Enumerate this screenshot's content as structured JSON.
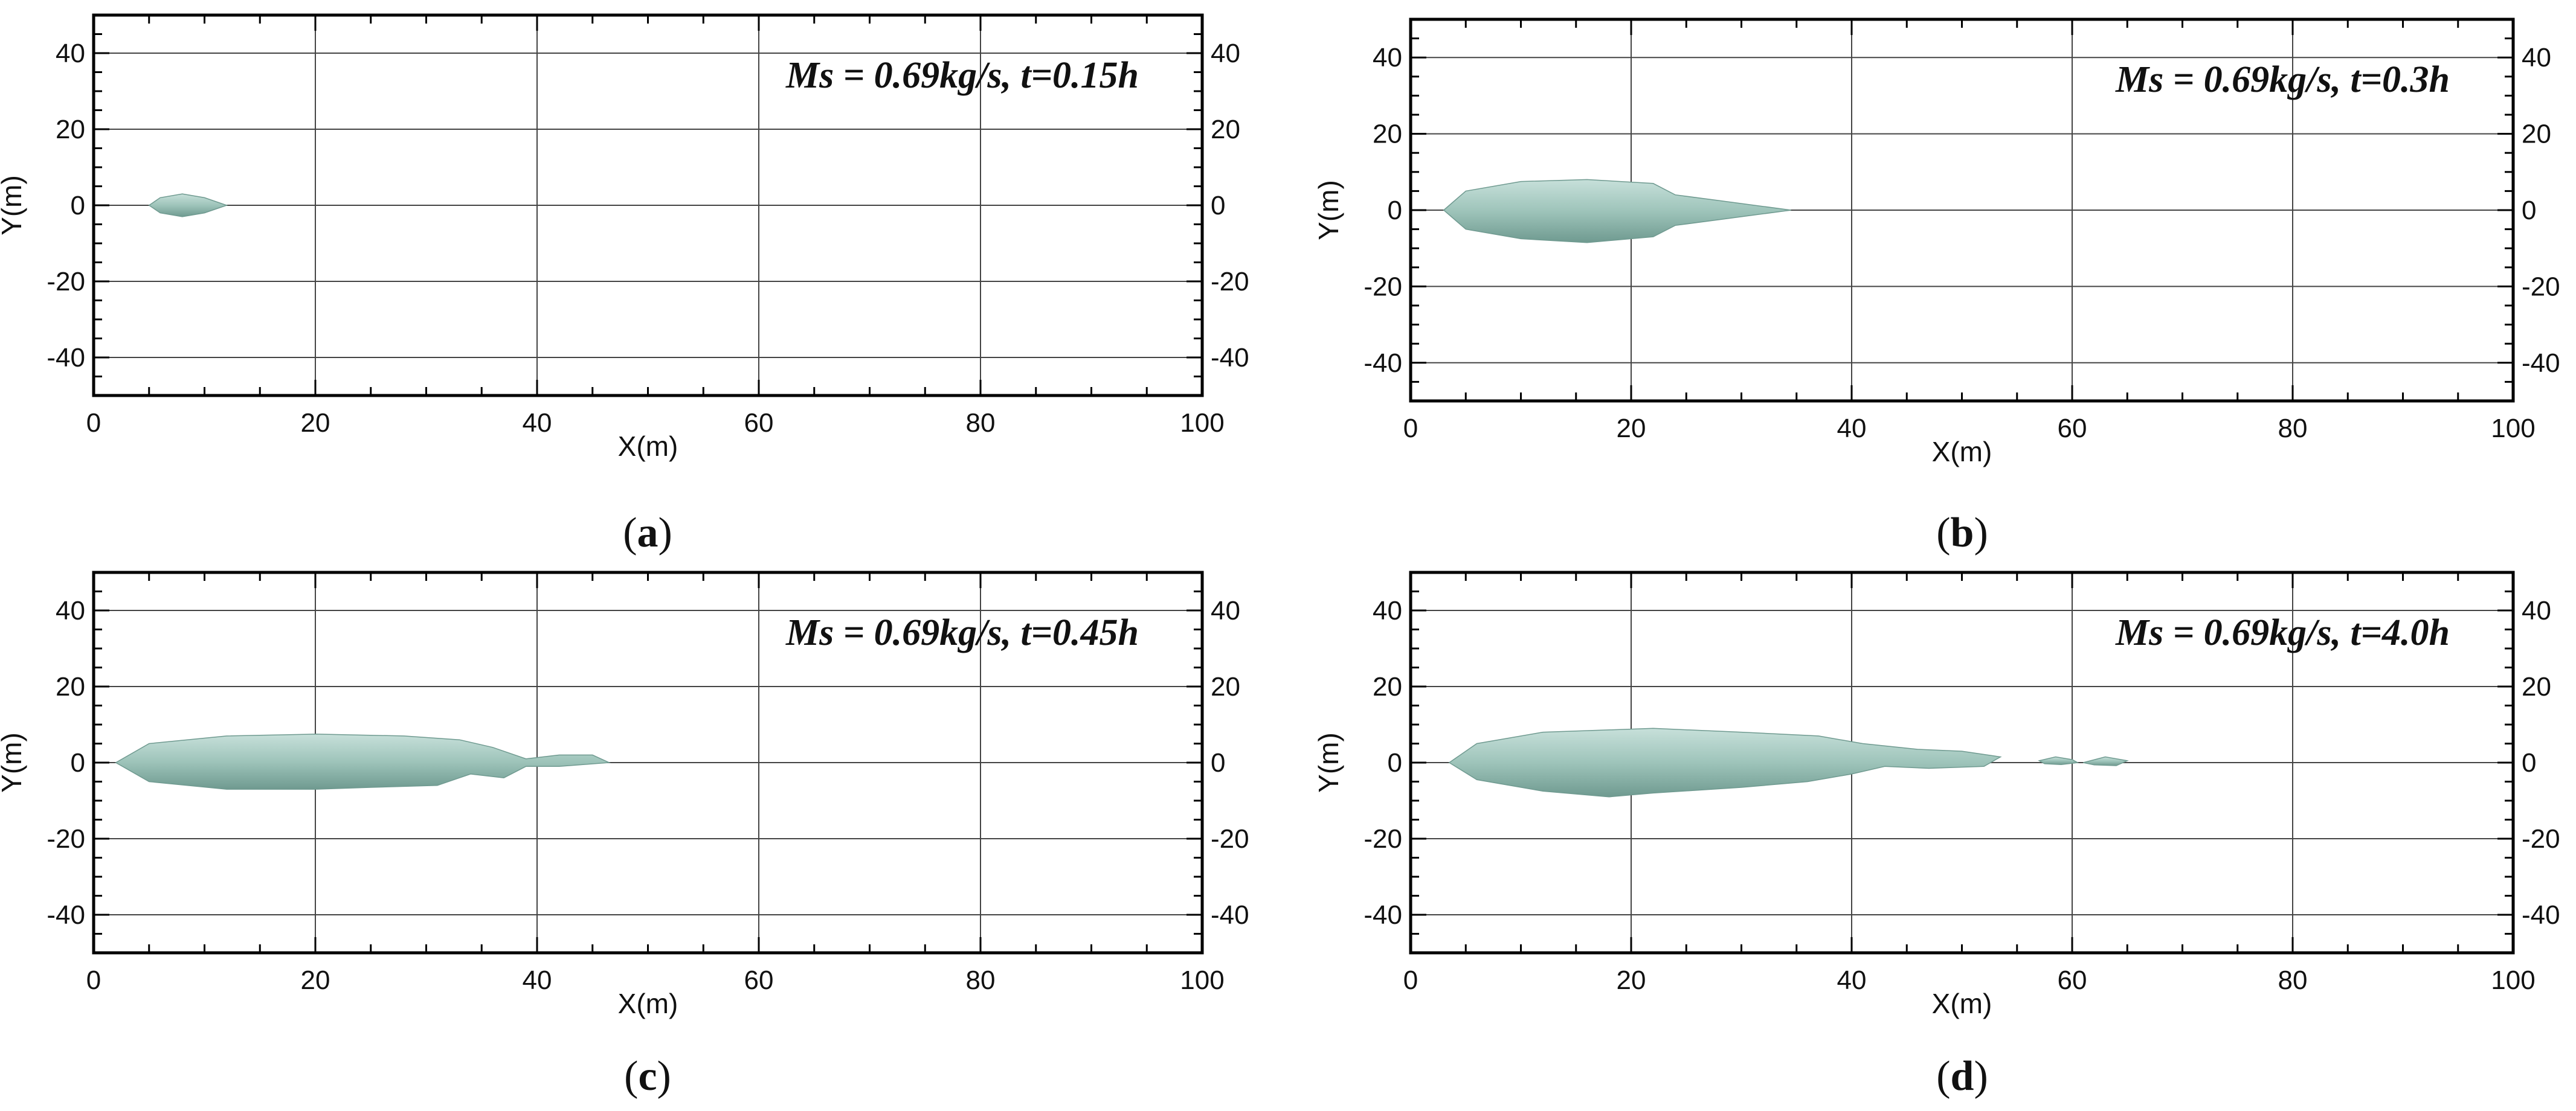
{
  "colors": {
    "plume_fill": "#9ec4ba",
    "plume_light": "#c7e0da",
    "plume_edge": "#6f9a90",
    "grid": "#444444",
    "frame": "#000000"
  },
  "chart_data": [
    {
      "type": "area",
      "panel": "a",
      "caption_letter": "a",
      "annotation": "Ms = 0.69kg/s, t=0.15h",
      "xlabel": "X(m)",
      "ylabel": "Y(m)",
      "xlim": [
        0,
        100
      ],
      "ylim": [
        -50,
        50
      ],
      "x_ticks": [
        0,
        20,
        40,
        60,
        80,
        100
      ],
      "y_ticks": [
        -40,
        -20,
        0,
        20,
        40
      ],
      "grid": true,
      "plume_outline": [
        [
          5,
          0
        ],
        [
          6,
          2
        ],
        [
          8,
          3
        ],
        [
          10,
          2
        ],
        [
          12,
          0
        ],
        [
          10,
          -2
        ],
        [
          8,
          -3
        ],
        [
          6,
          -2
        ]
      ]
    },
    {
      "type": "area",
      "panel": "b",
      "caption_letter": "b",
      "annotation": "Ms = 0.69kg/s, t=0.3h",
      "xlabel": "X(m)",
      "ylabel": "Y(m)",
      "xlim": [
        0,
        100
      ],
      "ylim": [
        -50,
        50
      ],
      "x_ticks": [
        0,
        20,
        40,
        60,
        80,
        100
      ],
      "y_ticks": [
        -40,
        -20,
        0,
        20,
        40
      ],
      "grid": true,
      "plume_outline": [
        [
          3,
          0
        ],
        [
          5,
          5
        ],
        [
          10,
          7.5
        ],
        [
          16,
          8
        ],
        [
          22,
          7
        ],
        [
          24,
          4
        ],
        [
          28,
          2.5
        ],
        [
          34.5,
          0
        ],
        [
          28,
          -2.5
        ],
        [
          24,
          -4
        ],
        [
          22,
          -7
        ],
        [
          16,
          -8.5
        ],
        [
          10,
          -7.5
        ],
        [
          5,
          -5
        ]
      ]
    },
    {
      "type": "area",
      "panel": "c",
      "caption_letter": "c",
      "annotation": "Ms = 0.69kg/s, t=0.45h",
      "xlabel": "X(m)",
      "ylabel": "Y(m)",
      "xlim": [
        0,
        100
      ],
      "ylim": [
        -50,
        50
      ],
      "x_ticks": [
        0,
        20,
        40,
        60,
        80,
        100
      ],
      "y_ticks": [
        -40,
        -20,
        0,
        20,
        40
      ],
      "grid": true,
      "plume_outline": [
        [
          2,
          0
        ],
        [
          5,
          5
        ],
        [
          12,
          7
        ],
        [
          20,
          7.5
        ],
        [
          28,
          7
        ],
        [
          33,
          6
        ],
        [
          36,
          4
        ],
        [
          39,
          1
        ],
        [
          42,
          2
        ],
        [
          45,
          2
        ],
        [
          46.5,
          0
        ],
        [
          42,
          -1
        ],
        [
          39,
          -1
        ],
        [
          37,
          -4
        ],
        [
          34,
          -3
        ],
        [
          31,
          -6
        ],
        [
          25,
          -6.5
        ],
        [
          20,
          -7
        ],
        [
          12,
          -7
        ],
        [
          5,
          -5
        ]
      ]
    },
    {
      "type": "area",
      "panel": "d",
      "caption_letter": "d",
      "annotation": "Ms = 0.69kg/s, t=4.0h",
      "xlabel": "X(m)",
      "ylabel": "Y(m)",
      "xlim": [
        0,
        100
      ],
      "ylim": [
        -50,
        50
      ],
      "x_ticks": [
        0,
        20,
        40,
        60,
        80,
        100
      ],
      "y_ticks": [
        -40,
        -20,
        0,
        20,
        40
      ],
      "grid": true,
      "plume_outline": [
        [
          3.5,
          0
        ],
        [
          6,
          5
        ],
        [
          12,
          8
        ],
        [
          22,
          9
        ],
        [
          30,
          8
        ],
        [
          37,
          7
        ],
        [
          41,
          5
        ],
        [
          46,
          3.5
        ],
        [
          50,
          3
        ],
        [
          53.5,
          1.5
        ],
        [
          52,
          -1
        ],
        [
          47,
          -1.5
        ],
        [
          43,
          -1
        ],
        [
          40,
          -3
        ],
        [
          36,
          -5
        ],
        [
          30,
          -6.5
        ],
        [
          22,
          -8
        ],
        [
          18,
          -9
        ],
        [
          12,
          -7.5
        ],
        [
          6,
          -4.5
        ]
      ],
      "plume_fragments": [
        [
          [
            57,
            0.5
          ],
          [
            58.5,
            1.5
          ],
          [
            60,
            0.8
          ],
          [
            60.5,
            0
          ],
          [
            59,
            -0.5
          ],
          [
            57.5,
            -0.3
          ]
        ],
        [
          [
            61,
            0
          ],
          [
            63,
            1.5
          ],
          [
            65,
            0.5
          ],
          [
            64,
            -0.8
          ],
          [
            62,
            -0.6
          ]
        ]
      ]
    }
  ]
}
